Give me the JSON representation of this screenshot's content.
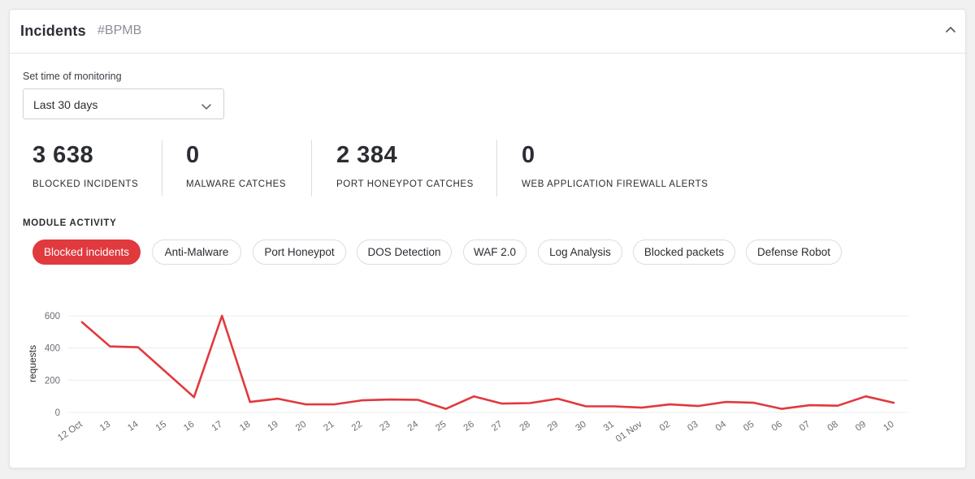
{
  "header": {
    "title": "Incidents",
    "id": "#BPMB"
  },
  "monitoring": {
    "label": "Set time of monitoring",
    "selected": "Last 30 days"
  },
  "stats": [
    {
      "value": "3 638",
      "label": "BLOCKED INCIDENTS"
    },
    {
      "value": "0",
      "label": "MALWARE CATCHES"
    },
    {
      "value": "2 384",
      "label": "PORT HONEYPOT CATCHES"
    },
    {
      "value": "0",
      "label": "WEB APPLICATION FIREWALL ALERTS"
    }
  ],
  "module_activity": {
    "title": "MODULE ACTIVITY",
    "tabs": [
      "Blocked incidents",
      "Anti-Malware",
      "Port Honeypot",
      "DOS Detection",
      "WAF 2.0",
      "Log Analysis",
      "Blocked packets",
      "Defense Robot"
    ],
    "active_tab": "Blocked incidents"
  },
  "colors": {
    "accent": "#e0393e",
    "grid": "#ececee",
    "text": "#2b2d33"
  },
  "chart_data": {
    "type": "line",
    "ylabel": "requests",
    "ylim": [
      0,
      600
    ],
    "yticks": [
      0,
      200,
      400,
      600
    ],
    "grid": true,
    "categories": [
      "12 Oct",
      "13",
      "14",
      "15",
      "16",
      "17",
      "18",
      "19",
      "20",
      "21",
      "22",
      "23",
      "24",
      "25",
      "26",
      "27",
      "28",
      "29",
      "30",
      "31",
      "01 Nov",
      "02",
      "03",
      "04",
      "05",
      "06",
      "07",
      "08",
      "09",
      "10"
    ],
    "series": [
      {
        "values": [
          560,
          410,
          405,
          250,
          95,
          600,
          65,
          85,
          50,
          50,
          75,
          80,
          78,
          22,
          100,
          55,
          58,
          85,
          38,
          38,
          30,
          50,
          40,
          65,
          60,
          22,
          45,
          42,
          100,
          60
        ]
      }
    ]
  }
}
